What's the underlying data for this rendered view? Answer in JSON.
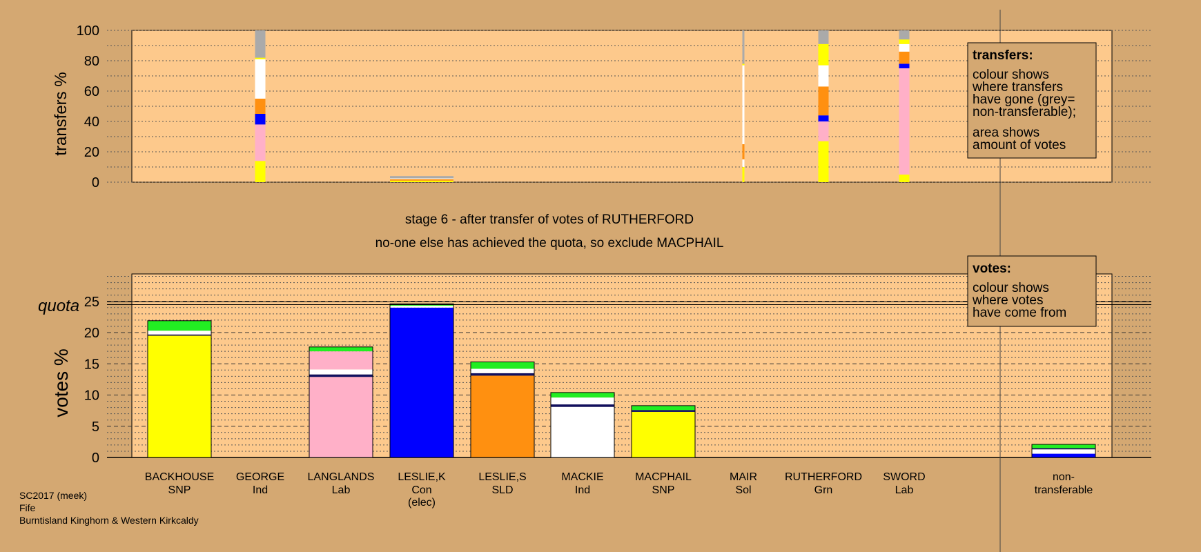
{
  "colors": {
    "background": "#d4a872",
    "panel": "#fdc98c",
    "legend_box": "#d4a872",
    "SNP": "#ffff00",
    "Ind": "#ffffff",
    "Lab": "#ffb0c8",
    "Con": "#0000ff",
    "SLD": "#ff9010",
    "Grn": "#22ee22",
    "Sol": "#ff8040",
    "nontransferable": "#aaaaaa",
    "dark_blue": "#101060"
  },
  "title_lines": [
    "stage 6 - after transfer of votes of RUTHERFORD",
    "no-one else has achieved the quota, so exclude MACPHAIL"
  ],
  "footer_lines": [
    "SC2017 (meek)",
    "Fife",
    "Burntisland Kinghorn & Western Kirkcaldy"
  ],
  "legends": {
    "transfers": {
      "heading": "transfers:",
      "lines": [
        "colour shows",
        "where transfers",
        "have gone (grey=",
        "non-transferable);",
        "area shows",
        "amount of votes"
      ]
    },
    "votes": {
      "heading": "votes:",
      "lines": [
        "colour shows",
        "where votes",
        "have come from"
      ]
    }
  },
  "candidates": [
    {
      "name": "BACKHOUSE",
      "party": "SNP"
    },
    {
      "name": "GEORGE",
      "party": "Ind"
    },
    {
      "name": "LANGLANDS",
      "party": "Lab"
    },
    {
      "name": "LESLIE,K",
      "party": "Con",
      "note": "(elec)"
    },
    {
      "name": "LESLIE,S",
      "party": "SLD"
    },
    {
      "name": "MACKIE",
      "party": "Ind"
    },
    {
      "name": "MACPHAIL",
      "party": "SNP"
    },
    {
      "name": "MAIR",
      "party": "Sol"
    },
    {
      "name": "RUTHERFORD",
      "party": "Grn"
    },
    {
      "name": "SWORD",
      "party": "Lab"
    },
    {
      "name": "non-",
      "party": "transferable"
    }
  ],
  "chart_data": [
    {
      "type": "bar",
      "ylabel": "transfers %",
      "ylim": [
        0,
        100
      ],
      "yticks": [
        "0",
        "20",
        "40",
        "60",
        "80",
        "100"
      ],
      "stacked": true,
      "columns": [
        {
          "candidate": "GEORGE",
          "width": "full",
          "segments": [
            {
              "color": "SNP",
              "from": 0,
              "to": 14
            },
            {
              "color": "Lab",
              "from": 14,
              "to": 38
            },
            {
              "color": "Con",
              "from": 38,
              "to": 45
            },
            {
              "color": "SLD",
              "from": 45,
              "to": 55
            },
            {
              "color": "Ind",
              "from": 55,
              "to": 81
            },
            {
              "color": "SNP",
              "from": 81,
              "to": 82
            },
            {
              "color": "nontransferable",
              "from": 82,
              "to": 100
            }
          ]
        },
        {
          "candidate": "LESLIE,K",
          "width": "full",
          "segments": [
            {
              "color": "SNP",
              "from": 0,
              "to": 1
            },
            {
              "color": "SLD",
              "from": 1,
              "to": 2
            },
            {
              "color": "Ind",
              "from": 2,
              "to": 2.5
            },
            {
              "color": "nontransferable",
              "from": 2.5,
              "to": 4
            }
          ]
        },
        {
          "candidate": "MAIR",
          "width": "thin",
          "segments": [
            {
              "color": "SNP",
              "from": 0,
              "to": 10
            },
            {
              "color": "Ind",
              "from": 10,
              "to": 15
            },
            {
              "color": "SLD",
              "from": 15,
              "to": 25
            },
            {
              "color": "Ind",
              "from": 25,
              "to": 77
            },
            {
              "color": "SNP",
              "from": 77,
              "to": 78
            },
            {
              "color": "nontransferable",
              "from": 78,
              "to": 100
            }
          ]
        },
        {
          "candidate": "RUTHERFORD",
          "width": "full",
          "segments": [
            {
              "color": "SNP",
              "from": 0,
              "to": 27
            },
            {
              "color": "Lab",
              "from": 27,
              "to": 40
            },
            {
              "color": "Con",
              "from": 40,
              "to": 44
            },
            {
              "color": "SLD",
              "from": 44,
              "to": 63
            },
            {
              "color": "Ind",
              "from": 63,
              "to": 77
            },
            {
              "color": "SNP",
              "from": 77,
              "to": 91
            },
            {
              "color": "nontransferable",
              "from": 91,
              "to": 100
            }
          ]
        },
        {
          "candidate": "SWORD",
          "width": "full",
          "segments": [
            {
              "color": "SNP",
              "from": 0,
              "to": 5
            },
            {
              "color": "Lab",
              "from": 5,
              "to": 75
            },
            {
              "color": "Con",
              "from": 75,
              "to": 78
            },
            {
              "color": "SLD",
              "from": 78,
              "to": 86
            },
            {
              "color": "Ind",
              "from": 86,
              "to": 91
            },
            {
              "color": "SNP",
              "from": 91,
              "to": 94
            },
            {
              "color": "nontransferable",
              "from": 94,
              "to": 100
            }
          ]
        }
      ]
    },
    {
      "type": "bar",
      "ylabel": "votes %",
      "ylim": [
        0,
        29
      ],
      "yticks": [
        "0",
        "5",
        "10",
        "15",
        "20",
        "25"
      ],
      "quota": 24.7,
      "quota_label": "quota",
      "stacked": true,
      "columns": [
        {
          "candidate": "BACKHOUSE",
          "segments": [
            {
              "color": "SNP",
              "from": 0,
              "to": 19.5
            },
            {
              "color": "dark_blue",
              "from": 19.5,
              "to": 19.7
            },
            {
              "color": "Ind",
              "from": 19.7,
              "to": 20.3
            },
            {
              "color": "Grn",
              "from": 20.3,
              "to": 21.9
            }
          ]
        },
        {
          "candidate": "LANGLANDS",
          "segments": [
            {
              "color": "Lab",
              "from": 0,
              "to": 12.9
            },
            {
              "color": "dark_blue",
              "from": 12.9,
              "to": 13.3
            },
            {
              "color": "Ind",
              "from": 13.3,
              "to": 14.1
            },
            {
              "color": "Lab",
              "from": 14.1,
              "to": 17.0
            },
            {
              "color": "Grn",
              "from": 17.0,
              "to": 17.7
            }
          ]
        },
        {
          "candidate": "LESLIE,K",
          "segments": [
            {
              "color": "Con",
              "from": 0,
              "to": 24.0
            },
            {
              "color": "Ind",
              "from": 24.0,
              "to": 24.3
            },
            {
              "color": "Grn",
              "from": 24.3,
              "to": 24.6
            }
          ]
        },
        {
          "candidate": "LESLIE,S",
          "segments": [
            {
              "color": "SLD",
              "from": 0,
              "to": 13.1
            },
            {
              "color": "dark_blue",
              "from": 13.1,
              "to": 13.5
            },
            {
              "color": "Ind",
              "from": 13.5,
              "to": 14.2
            },
            {
              "color": "Grn",
              "from": 14.2,
              "to": 15.3
            }
          ]
        },
        {
          "candidate": "MACKIE",
          "segments": [
            {
              "color": "Ind",
              "from": 0,
              "to": 8.1
            },
            {
              "color": "dark_blue",
              "from": 8.1,
              "to": 8.5
            },
            {
              "color": "Ind",
              "from": 8.5,
              "to": 9.6
            },
            {
              "color": "Grn",
              "from": 9.6,
              "to": 10.4
            }
          ]
        },
        {
          "candidate": "MACPHAIL",
          "segments": [
            {
              "color": "SNP",
              "from": 0,
              "to": 7.3
            },
            {
              "color": "dark_blue",
              "from": 7.3,
              "to": 7.6
            },
            {
              "color": "Grn",
              "from": 7.6,
              "to": 8.3
            }
          ]
        },
        {
          "candidate": "non-transferable",
          "segments": [
            {
              "color": "Con",
              "from": 0,
              "to": 0.6
            },
            {
              "color": "Ind",
              "from": 0.6,
              "to": 1.3
            },
            {
              "color": "dark_blue",
              "from": 1.3,
              "to": 1.5
            },
            {
              "color": "Grn",
              "from": 1.5,
              "to": 2.1
            }
          ]
        }
      ]
    }
  ]
}
